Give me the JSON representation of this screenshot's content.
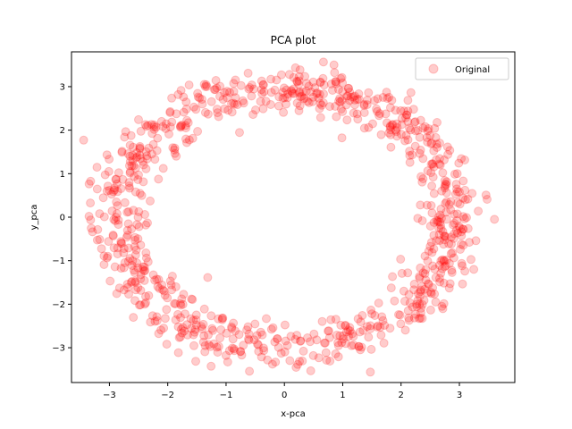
{
  "chart_data": {
    "type": "scatter",
    "title": "PCA plot",
    "xlabel": "x-pca",
    "ylabel": "y_pca",
    "xlim": [
      -3.65,
      3.95
    ],
    "ylim": [
      -3.8,
      3.8
    ],
    "xticks": [
      -3,
      -2,
      -1,
      0,
      1,
      2,
      3
    ],
    "yticks": [
      -3,
      -2,
      -1,
      0,
      1,
      2,
      3
    ],
    "grid": false,
    "legend_position": "top-right",
    "series": [
      {
        "name": "Original",
        "color": "#ff0000",
        "alpha": 0.2,
        "shape_description": "points scattered around an ellipse centered near the origin",
        "center": [
          0.0,
          0.0
        ],
        "radius_x": 2.9,
        "radius_y": 2.95,
        "point_count": 900,
        "spread": 0.28,
        "extreme_points": [
          [
            -3.35,
            0.02
          ],
          [
            3.6,
            -0.05
          ],
          [
            0.85,
            3.5
          ],
          [
            0.2,
            -3.45
          ]
        ]
      }
    ]
  }
}
